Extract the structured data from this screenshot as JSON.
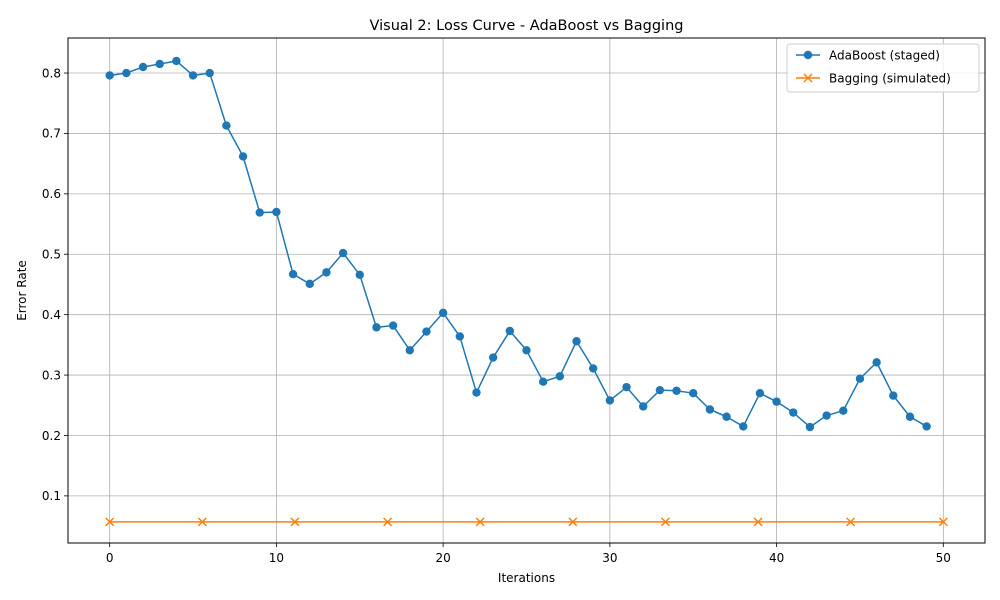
{
  "chart_data": {
    "type": "line",
    "title": "Visual 2: Loss Curve - AdaBoost vs Bagging",
    "xlabel": "Iterations",
    "ylabel": "Error Rate",
    "xlim": [
      -2.5,
      52.5
    ],
    "ylim": [
      0.022,
      0.858
    ],
    "xticks": [
      0,
      10,
      20,
      30,
      40,
      50
    ],
    "yticks": [
      0.1,
      0.2,
      0.3,
      0.4,
      0.5,
      0.6,
      0.7,
      0.8
    ],
    "grid": true,
    "legend_position": "top-right",
    "series": [
      {
        "name": "AdaBoost (staged)",
        "color": "#1f77b4",
        "marker": "circle",
        "x": [
          0,
          1,
          2,
          3,
          4,
          5,
          6,
          7,
          8,
          9,
          10,
          11,
          12,
          13,
          14,
          15,
          16,
          17,
          18,
          19,
          20,
          21,
          22,
          23,
          24,
          25,
          26,
          27,
          28,
          29,
          30,
          31,
          32,
          33,
          34,
          35,
          36,
          37,
          38,
          39,
          40,
          41,
          42,
          43,
          44,
          45,
          46,
          47,
          48,
          49
        ],
        "values": [
          0.796,
          0.8,
          0.81,
          0.815,
          0.82,
          0.796,
          0.8,
          0.713,
          0.662,
          0.569,
          0.57,
          0.467,
          0.451,
          0.47,
          0.502,
          0.466,
          0.379,
          0.382,
          0.341,
          0.372,
          0.403,
          0.364,
          0.271,
          0.329,
          0.373,
          0.341,
          0.289,
          0.298,
          0.356,
          0.311,
          0.258,
          0.28,
          0.248,
          0.275,
          0.274,
          0.27,
          0.243,
          0.231,
          0.215,
          0.27,
          0.256,
          0.238,
          0.214,
          0.233,
          0.241,
          0.294,
          0.321,
          0.266,
          0.231,
          0.215
        ]
      },
      {
        "name": "Bagging (simulated)",
        "color": "#ff7f0e",
        "marker": "x",
        "x": [
          0,
          5.56,
          11.11,
          16.67,
          22.22,
          27.78,
          33.33,
          38.89,
          44.44,
          50
        ],
        "values": [
          0.057,
          0.057,
          0.057,
          0.057,
          0.057,
          0.057,
          0.057,
          0.057,
          0.057,
          0.057
        ]
      }
    ]
  }
}
